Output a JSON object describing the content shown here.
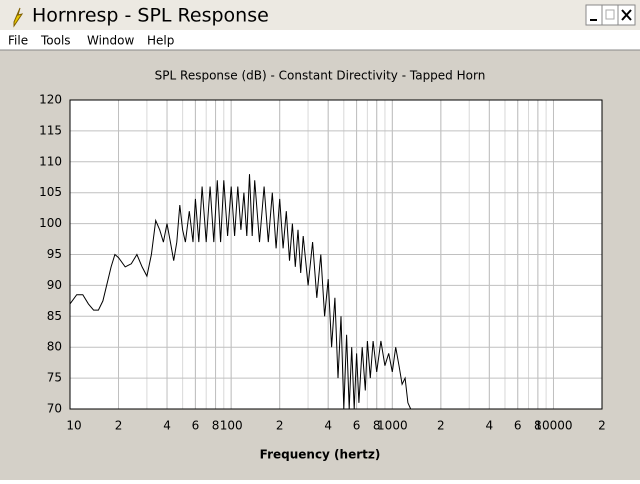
{
  "window": {
    "title": "Hornresp - SPL Response",
    "menu": [
      "File",
      "Tools",
      "Window",
      "Help"
    ]
  },
  "chart_data": {
    "type": "line",
    "title": "SPL Response (dB) - Constant Directivity - Tapped Horn",
    "x_label": "Frequency (hertz)",
    "xscale": "log",
    "grid": true,
    "color": "#000000",
    "xlim": [
      10,
      20000
    ],
    "ylim": [
      70,
      120
    ],
    "xticks": [
      10,
      {
        "value": 20,
        "label": "2"
      },
      {
        "value": 40,
        "label": "4"
      },
      {
        "value": 60,
        "label": "6"
      },
      {
        "value": 80,
        "label": "8"
      },
      100,
      {
        "value": 200,
        "label": "2"
      },
      {
        "value": 400,
        "label": "4"
      },
      {
        "value": 600,
        "label": "6"
      },
      {
        "value": 800,
        "label": "8"
      },
      1000,
      {
        "value": 2000,
        "label": "2"
      },
      {
        "value": 4000,
        "label": "4"
      },
      {
        "value": 6000,
        "label": "6"
      },
      {
        "value": 8000,
        "label": "8"
      },
      10000,
      {
        "value": 20000,
        "label": "2"
      }
    ],
    "yticks": [
      70,
      75,
      80,
      85,
      90,
      95,
      100,
      105,
      110,
      115,
      120
    ],
    "x": [
      10,
      11,
      12,
      13,
      14,
      15,
      16,
      18,
      19,
      20,
      22,
      24,
      26,
      28,
      30,
      32,
      34,
      36,
      38,
      40,
      42,
      44,
      46,
      48,
      50,
      52,
      55,
      58,
      60,
      63,
      66,
      70,
      74,
      78,
      82,
      86,
      90,
      95,
      100,
      105,
      110,
      115,
      120,
      125,
      130,
      135,
      140,
      150,
      160,
      170,
      180,
      190,
      200,
      210,
      220,
      230,
      240,
      250,
      260,
      270,
      280,
      300,
      320,
      340,
      360,
      380,
      400,
      420,
      440,
      460,
      480,
      500,
      520,
      540,
      560,
      580,
      600,
      620,
      650,
      680,
      700,
      730,
      760,
      800,
      850,
      900,
      950,
      1000,
      1050,
      1100,
      1150,
      1200,
      1250,
      1300
    ],
    "values": [
      87,
      88.5,
      88.5,
      87,
      86,
      86,
      87.5,
      93,
      95,
      94.5,
      93,
      93.5,
      95,
      93,
      91.5,
      95,
      100.5,
      99,
      97,
      100,
      97,
      94,
      97,
      103,
      99,
      97,
      102,
      97,
      104,
      97,
      106,
      97,
      106,
      97,
      107,
      97,
      107,
      98,
      106,
      98,
      106,
      99,
      105,
      98,
      108,
      98,
      107,
      97,
      106,
      97,
      105,
      96,
      104,
      96,
      102,
      94,
      100,
      93,
      99,
      92,
      98,
      90,
      97,
      88,
      95,
      85,
      91,
      80,
      88,
      75,
      85,
      70,
      82,
      70,
      80,
      70,
      79,
      71,
      80,
      73,
      81,
      75,
      81,
      76,
      81,
      77,
      79,
      76,
      80,
      77,
      74,
      75,
      71,
      70
    ]
  }
}
